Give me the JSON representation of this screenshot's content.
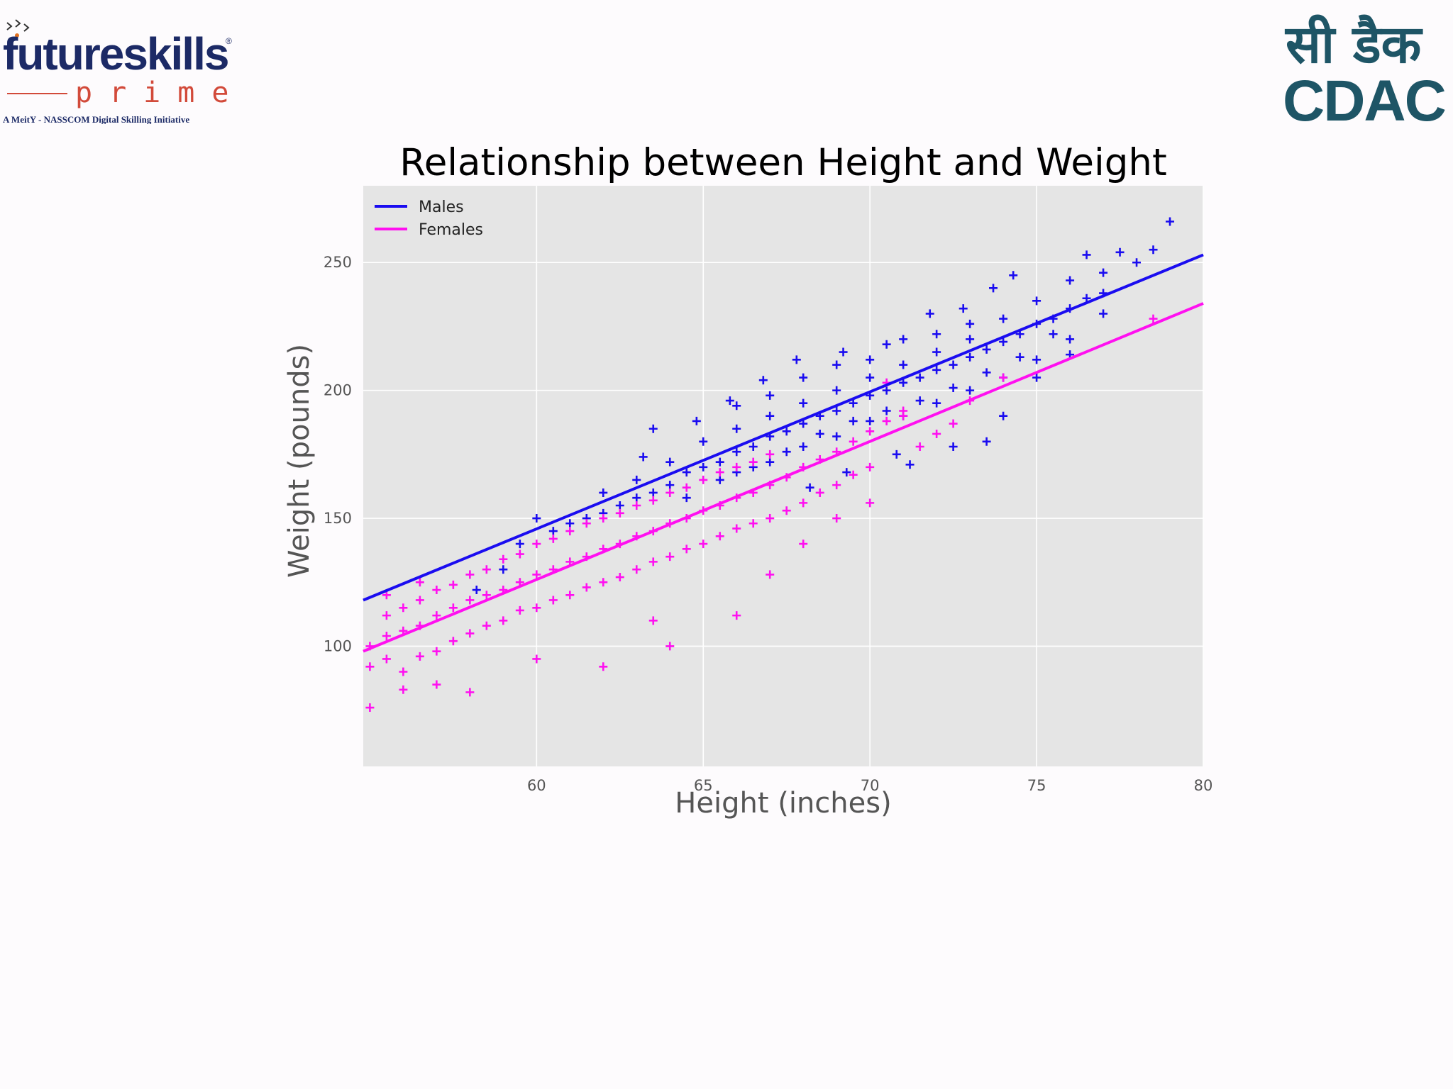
{
  "branding": {
    "left_logo": {
      "word": "futureskills",
      "sub": "prime",
      "tagline": "A MeitY - NASSCOM Digital Skilling Initiative",
      "mark": "®"
    },
    "right_logo": {
      "hindi": "सी डैक",
      "latin": "CDAC"
    }
  },
  "colors": {
    "males": "#1a0cf0",
    "females": "#ff10f0",
    "plot_bg": "#e5e5e5",
    "grid": "#ffffff"
  },
  "chart_data": {
    "type": "scatter",
    "title": "Relationship between Height and Weight",
    "xlabel": "Height (inches)",
    "ylabel": "Weight (pounds)",
    "xlim": [
      54.8,
      80
    ],
    "ylim": [
      53,
      280
    ],
    "xticks": [
      60,
      65,
      70,
      75,
      80
    ],
    "yticks": [
      100,
      150,
      200,
      250
    ],
    "grid": true,
    "legend_position": "top-left",
    "marker": "+",
    "series": [
      {
        "name": "Males",
        "color": "#1a0cf0",
        "fit_line": {
          "x": [
            54.8,
            80
          ],
          "y": [
            118,
            253
          ]
        },
        "points": [
          [
            61.5,
            150
          ],
          [
            62,
            152
          ],
          [
            62.5,
            155
          ],
          [
            63,
            158
          ],
          [
            63.5,
            160
          ],
          [
            64,
            163
          ],
          [
            64.5,
            168
          ],
          [
            65,
            170
          ],
          [
            65.5,
            172
          ],
          [
            66,
            176
          ],
          [
            66.5,
            178
          ],
          [
            67,
            182
          ],
          [
            67.5,
            184
          ],
          [
            68,
            187
          ],
          [
            68.5,
            190
          ],
          [
            69,
            192
          ],
          [
            69.5,
            195
          ],
          [
            70,
            198
          ],
          [
            70.5,
            200
          ],
          [
            71,
            203
          ],
          [
            71.5,
            205
          ],
          [
            72,
            208
          ],
          [
            72.5,
            210
          ],
          [
            73,
            213
          ],
          [
            73.5,
            216
          ],
          [
            74,
            219
          ],
          [
            74.5,
            222
          ],
          [
            75,
            226
          ],
          [
            75.5,
            228
          ],
          [
            76,
            232
          ],
          [
            76.5,
            236
          ],
          [
            77,
            238
          ],
          [
            63,
            165
          ],
          [
            64,
            172
          ],
          [
            65,
            180
          ],
          [
            66,
            185
          ],
          [
            67,
            190
          ],
          [
            68,
            195
          ],
          [
            69,
            200
          ],
          [
            70,
            205
          ],
          [
            71,
            210
          ],
          [
            72,
            215
          ],
          [
            73,
            220
          ],
          [
            74,
            228
          ],
          [
            75,
            235
          ],
          [
            76,
            243
          ],
          [
            77,
            246
          ],
          [
            78,
            250
          ],
          [
            66,
            168
          ],
          [
            67,
            172
          ],
          [
            68,
            178
          ],
          [
            69,
            182
          ],
          [
            70,
            188
          ],
          [
            71,
            190
          ],
          [
            72,
            195
          ],
          [
            73,
            200
          ],
          [
            74,
            205
          ],
          [
            75,
            212
          ],
          [
            76,
            220
          ],
          [
            64.5,
            158
          ],
          [
            65.5,
            165
          ],
          [
            66.5,
            170
          ],
          [
            67.5,
            176
          ],
          [
            68.5,
            183
          ],
          [
            69.5,
            188
          ],
          [
            70.5,
            192
          ],
          [
            71.5,
            196
          ],
          [
            72.5,
            201
          ],
          [
            73.5,
            207
          ],
          [
            74.5,
            213
          ],
          [
            70,
            212
          ],
          [
            71,
            220
          ],
          [
            72,
            222
          ],
          [
            73,
            226
          ],
          [
            68,
            205
          ],
          [
            69,
            210
          ],
          [
            66,
            194
          ],
          [
            67,
            198
          ],
          [
            60.5,
            145
          ],
          [
            61,
            148
          ],
          [
            59.5,
            140
          ],
          [
            60,
            150
          ],
          [
            63.5,
            185
          ],
          [
            62,
            160
          ],
          [
            58.2,
            122
          ],
          [
            59,
            130
          ],
          [
            76.5,
            253
          ],
          [
            77.5,
            254
          ],
          [
            79,
            266
          ],
          [
            78.5,
            255
          ],
          [
            77,
            230
          ],
          [
            76,
            214
          ],
          [
            73.5,
            180
          ],
          [
            72.5,
            178
          ],
          [
            71.2,
            171
          ],
          [
            70.8,
            175
          ],
          [
            69.3,
            168
          ],
          [
            68.2,
            162
          ],
          [
            74,
            190
          ],
          [
            75,
            205
          ],
          [
            75.5,
            222
          ],
          [
            72.8,
            232
          ],
          [
            73.7,
            240
          ],
          [
            74.3,
            245
          ],
          [
            71.8,
            230
          ],
          [
            70.5,
            218
          ],
          [
            69.2,
            215
          ],
          [
            67.8,
            212
          ],
          [
            66.8,
            204
          ],
          [
            65.8,
            196
          ],
          [
            64.8,
            188
          ],
          [
            63.2,
            174
          ]
        ]
      },
      {
        "name": "Females",
        "color": "#ff10f0",
        "fit_line": {
          "x": [
            54.8,
            80
          ],
          "y": [
            98,
            234
          ]
        },
        "points": [
          [
            55,
            100
          ],
          [
            55.5,
            104
          ],
          [
            56,
            106
          ],
          [
            56.5,
            108
          ],
          [
            57,
            112
          ],
          [
            57.5,
            115
          ],
          [
            58,
            118
          ],
          [
            58.5,
            120
          ],
          [
            59,
            122
          ],
          [
            59.5,
            125
          ],
          [
            60,
            128
          ],
          [
            60.5,
            130
          ],
          [
            61,
            133
          ],
          [
            61.5,
            135
          ],
          [
            62,
            138
          ],
          [
            62.5,
            140
          ],
          [
            63,
            143
          ],
          [
            63.5,
            145
          ],
          [
            64,
            148
          ],
          [
            64.5,
            150
          ],
          [
            65,
            153
          ],
          [
            65.5,
            155
          ],
          [
            66,
            158
          ],
          [
            66.5,
            160
          ],
          [
            67,
            163
          ],
          [
            67.5,
            166
          ],
          [
            68,
            170
          ],
          [
            68.5,
            173
          ],
          [
            69,
            176
          ],
          [
            69.5,
            180
          ],
          [
            70,
            184
          ],
          [
            70.5,
            188
          ],
          [
            71,
            192
          ],
          [
            55,
            92
          ],
          [
            55.5,
            95
          ],
          [
            56,
            90
          ],
          [
            56.5,
            96
          ],
          [
            57,
            98
          ],
          [
            57.5,
            102
          ],
          [
            58,
            105
          ],
          [
            58.5,
            108
          ],
          [
            59,
            110
          ],
          [
            59.5,
            114
          ],
          [
            60,
            115
          ],
          [
            60.5,
            118
          ],
          [
            61,
            120
          ],
          [
            61.5,
            123
          ],
          [
            62,
            125
          ],
          [
            62.5,
            127
          ],
          [
            63,
            130
          ],
          [
            63.5,
            133
          ],
          [
            64,
            135
          ],
          [
            64.5,
            138
          ],
          [
            65,
            140
          ],
          [
            65.5,
            143
          ],
          [
            66,
            146
          ],
          [
            66.5,
            148
          ],
          [
            67,
            150
          ],
          [
            67.5,
            153
          ],
          [
            68,
            156
          ],
          [
            68.5,
            160
          ],
          [
            69,
            163
          ],
          [
            69.5,
            167
          ],
          [
            70,
            170
          ],
          [
            55.5,
            112
          ],
          [
            56,
            115
          ],
          [
            56.5,
            118
          ],
          [
            57,
            122
          ],
          [
            57.5,
            124
          ],
          [
            58,
            128
          ],
          [
            58.5,
            130
          ],
          [
            59,
            134
          ],
          [
            59.5,
            136
          ],
          [
            60,
            140
          ],
          [
            60.5,
            142
          ],
          [
            61,
            145
          ],
          [
            61.5,
            148
          ],
          [
            62,
            150
          ],
          [
            62.5,
            152
          ],
          [
            63,
            155
          ],
          [
            63.5,
            157
          ],
          [
            64,
            160
          ],
          [
            64.5,
            162
          ],
          [
            65,
            165
          ],
          [
            65.5,
            168
          ],
          [
            66,
            170
          ],
          [
            66.5,
            172
          ],
          [
            67,
            175
          ],
          [
            55,
            76
          ],
          [
            56,
            83
          ],
          [
            57,
            85
          ],
          [
            58,
            82
          ],
          [
            60,
            95
          ],
          [
            62,
            92
          ],
          [
            64,
            100
          ],
          [
            63.5,
            110
          ],
          [
            66,
            112
          ],
          [
            67,
            128
          ],
          [
            68,
            140
          ],
          [
            69,
            150
          ],
          [
            70,
            156
          ],
          [
            71.5,
            178
          ],
          [
            72,
            183
          ],
          [
            73,
            196
          ],
          [
            74,
            205
          ],
          [
            78.5,
            228
          ],
          [
            55.5,
            120
          ],
          [
            56.5,
            125
          ],
          [
            70.5,
            203
          ],
          [
            71,
            190
          ],
          [
            72.5,
            187
          ]
        ]
      }
    ]
  }
}
